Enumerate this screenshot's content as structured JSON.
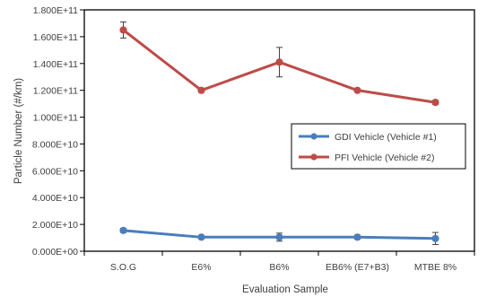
{
  "chart_data": {
    "type": "line",
    "categories": [
      "S.O.G",
      "E6%",
      "B6%",
      "EB6% (E7+B3)",
      "MTBE 8%"
    ],
    "xlabel": "Evaluation Sample",
    "ylabel": "Particle Number (#/km)",
    "ylim": [
      0,
      180000000000
    ],
    "yticks": [
      0,
      20000000000,
      40000000000,
      60000000000,
      80000000000,
      100000000000,
      120000000000,
      140000000000,
      160000000000,
      180000000000
    ],
    "ytick_labels": [
      "0.000E+00",
      "2.000E+10",
      "4.000E+10",
      "6.000E+10",
      "8.000E+10",
      "1.000E+11",
      "1.200E+11",
      "1.400E+11",
      "1.600E+11",
      "1.800E+11"
    ],
    "grid": false,
    "legend_position": "right",
    "series": [
      {
        "name": "GDI Vehicle (Vehicle #1)",
        "color": "#4a7ebb",
        "values": [
          15500000000,
          10500000000,
          10500000000,
          10500000000,
          9500000000
        ],
        "errors": [
          1500000000,
          1000000000,
          3000000000,
          1500000000,
          4500000000
        ]
      },
      {
        "name": "PFI Vehicle (Vehicle #2)",
        "color": "#be4b48",
        "values": [
          165000000000,
          120000000000,
          141000000000,
          120000000000,
          111000000000
        ],
        "errors": [
          6000000000,
          1500000000,
          11000000000,
          1000000000,
          1500000000
        ]
      }
    ]
  }
}
